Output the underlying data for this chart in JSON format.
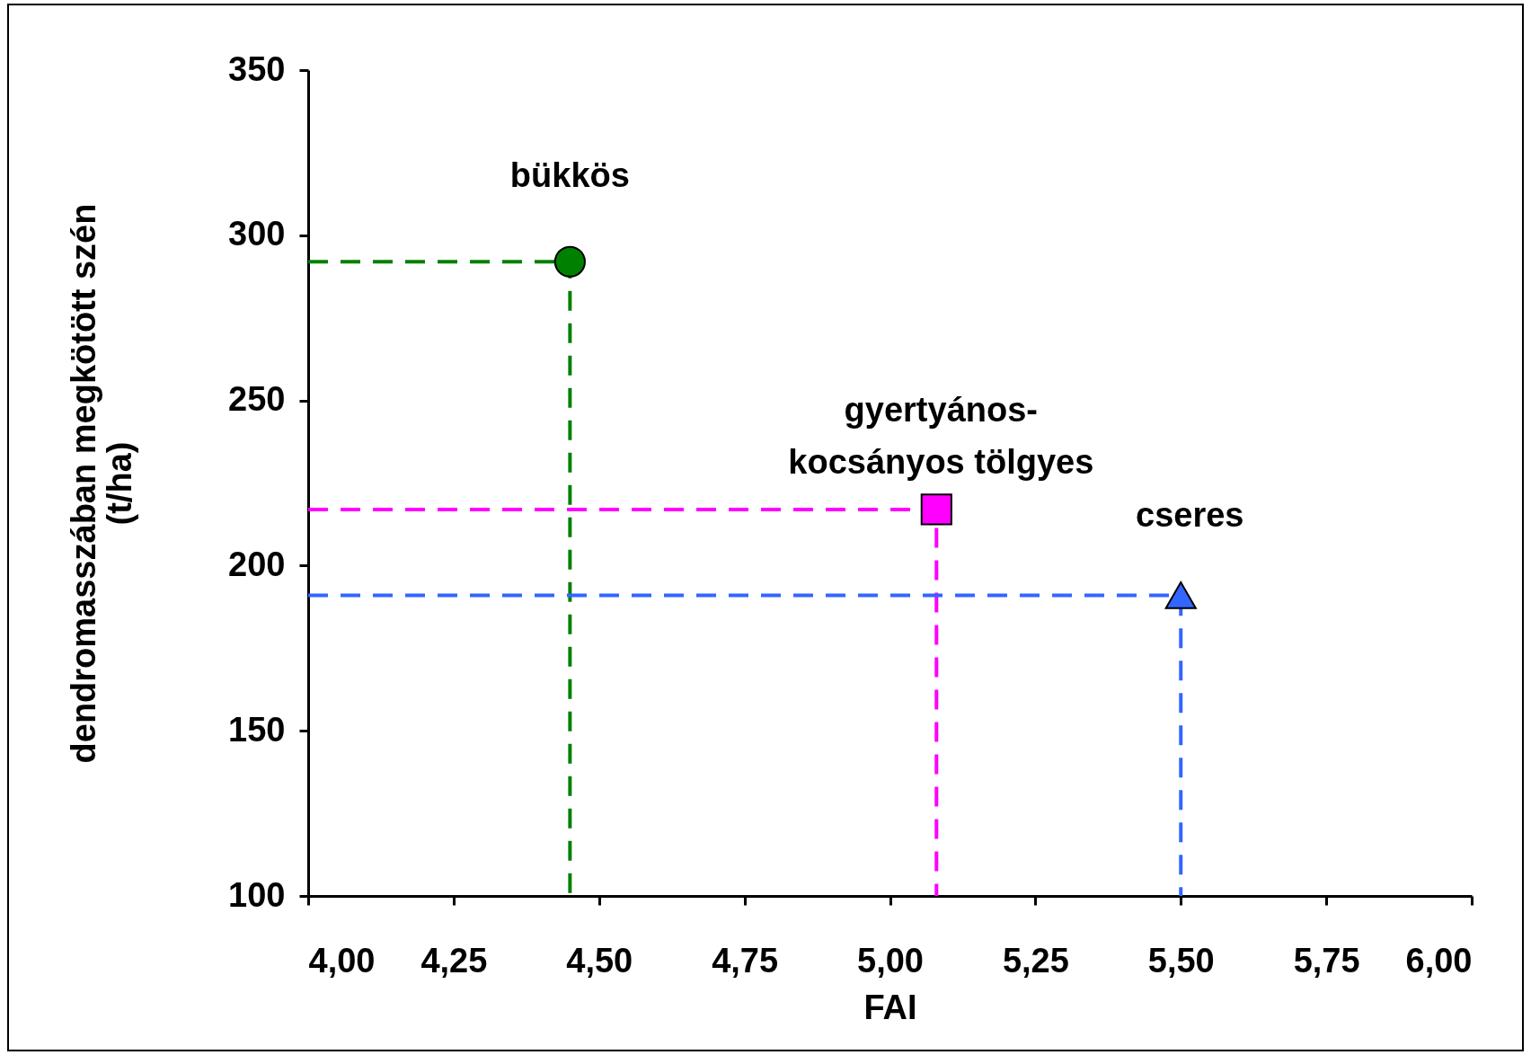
{
  "chart_data": {
    "type": "scatter",
    "xlabel": "FAI",
    "ylabel": "dendromasszában megkötött szén (t/ha)",
    "xlim": [
      4,
      6
    ],
    "xticks": [
      {
        "value": 4,
        "label": "4,00"
      },
      {
        "value": 4.25,
        "label": "4,25"
      },
      {
        "value": 4.5,
        "label": "4,50"
      },
      {
        "value": 4.75,
        "label": "4,75"
      },
      {
        "value": 5,
        "label": "5,00"
      },
      {
        "value": 5.25,
        "label": "5,25"
      },
      {
        "value": 5.5,
        "label": "5,50"
      },
      {
        "value": 5.75,
        "label": "5,75"
      },
      {
        "value": 6,
        "label": "6,00"
      }
    ],
    "ylim": [
      100,
      350
    ],
    "yticks": [
      100,
      150,
      200,
      250,
      300,
      350
    ],
    "grid": false,
    "legend": false,
    "series": [
      {
        "type": "line",
        "color": "#008000",
        "line_style": "dashed",
        "marker": "none",
        "x": [
          4,
          4.45,
          4.45
        ],
        "values": [
          292,
          292,
          100
        ]
      },
      {
        "type": "line",
        "color": "#ff00ff",
        "line_style": "dashed",
        "marker": "none",
        "x": [
          4,
          5.08,
          5.08
        ],
        "values": [
          217,
          217,
          100
        ]
      },
      {
        "type": "line",
        "color": "#3366ff",
        "line_style": "dashed",
        "marker": "none",
        "x": [
          4,
          5.5,
          5.5
        ],
        "values": [
          191,
          191,
          100
        ]
      },
      {
        "name": "bükkös",
        "color": "#008000",
        "marker": "circle",
        "x": [
          4.45
        ],
        "values": [
          292
        ]
      },
      {
        "name": "gyertyános-kocsányos tölgyes",
        "color": "#ff00ff",
        "marker": "square",
        "x": [
          5.08
        ],
        "values": [
          217
        ]
      },
      {
        "name": "cseres",
        "color": "#3366ff",
        "marker": "triangle",
        "x": [
          5.5
        ],
        "values": [
          191
        ]
      }
    ]
  }
}
